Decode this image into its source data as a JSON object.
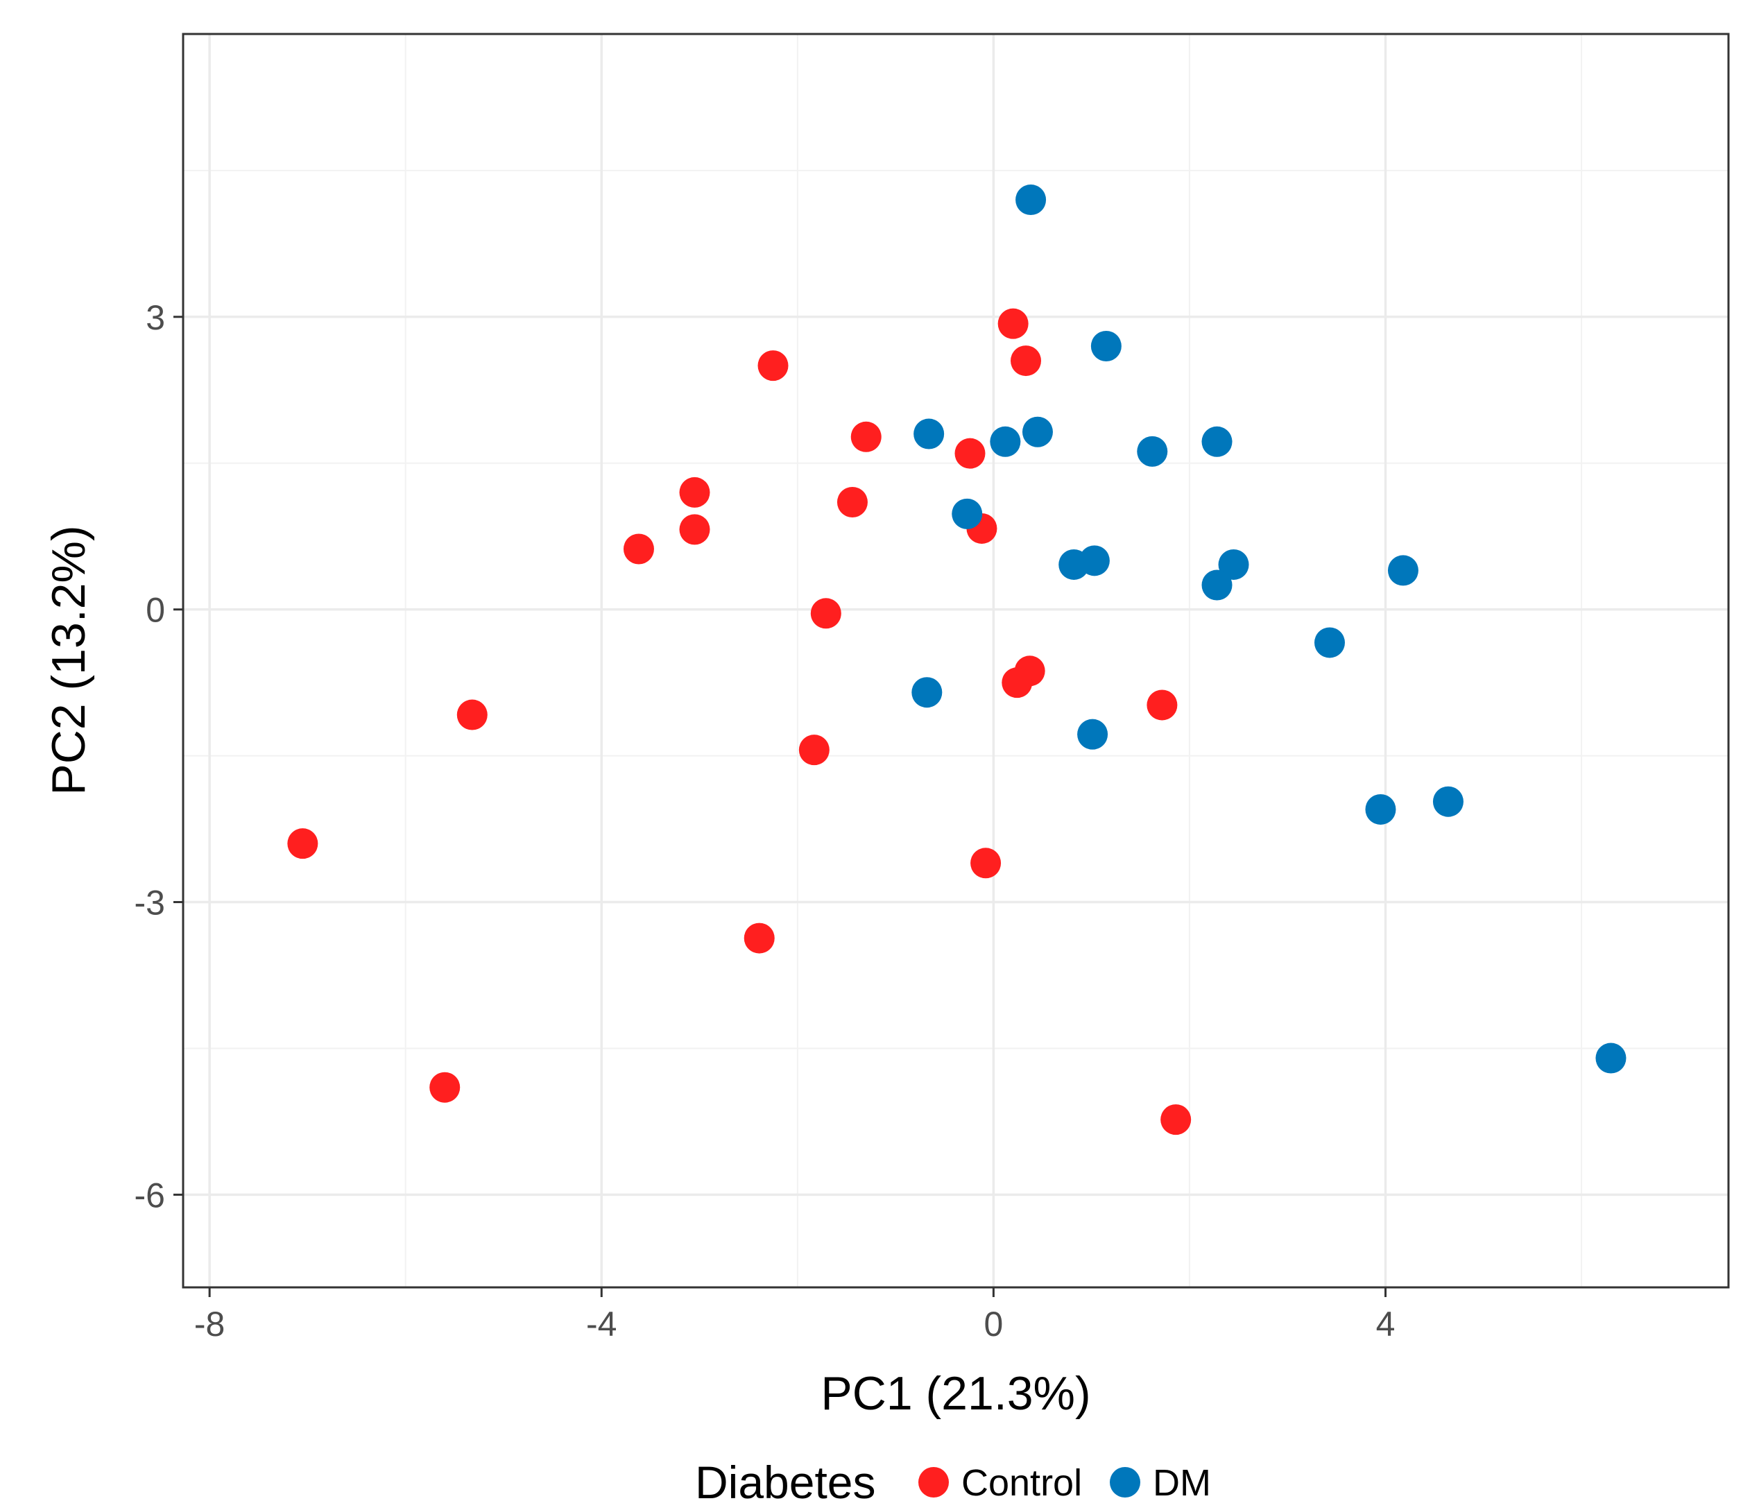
{
  "chart_data": {
    "type": "scatter",
    "title": "",
    "xlabel": "PC1 (21.3%)",
    "ylabel": "PC2 (13.2%)",
    "xlim": [
      -8.27,
      7.5
    ],
    "ylim": [
      -6.95,
      5.9
    ],
    "x_ticks": [
      -8,
      -4,
      0,
      4
    ],
    "x_tick_labels": [
      "-8",
      "-4",
      "0",
      "4"
    ],
    "y_ticks": [
      3,
      0,
      -3,
      -6
    ],
    "y_tick_labels": [
      "3",
      "0",
      "-3",
      "-6"
    ],
    "x_minor": [
      -6,
      -2,
      2,
      6
    ],
    "y_minor": [
      4.5,
      1.5,
      -1.5,
      -4.5
    ],
    "grid": true,
    "legend": {
      "title": "Diabetes",
      "position": "bottom",
      "entries": [
        {
          "name": "Control",
          "color": "#ff1f1f"
        },
        {
          "name": "DM",
          "color": "#0077bb"
        }
      ]
    },
    "series": [
      {
        "name": "Control",
        "color": "#ff1f1f",
        "points": [
          [
            0.2,
            2.93
          ],
          [
            0.33,
            2.55
          ],
          [
            -2.25,
            2.5
          ],
          [
            -1.3,
            1.77
          ],
          [
            -0.24,
            1.6
          ],
          [
            -3.05,
            1.2
          ],
          [
            -1.44,
            1.1
          ],
          [
            -3.05,
            0.82
          ],
          [
            -0.12,
            0.83
          ],
          [
            -3.62,
            0.62
          ],
          [
            -1.71,
            -0.04
          ],
          [
            0.37,
            -0.63
          ],
          [
            0.24,
            -0.75
          ],
          [
            1.72,
            -0.98
          ],
          [
            -5.32,
            -1.08
          ],
          [
            -1.83,
            -1.44
          ],
          [
            -7.05,
            -2.4
          ],
          [
            -0.08,
            -2.6
          ],
          [
            -2.39,
            -3.37
          ],
          [
            -5.6,
            -4.9
          ],
          [
            1.86,
            -5.23
          ]
        ]
      },
      {
        "name": "DM",
        "color": "#0077bb",
        "points": [
          [
            0.38,
            4.2
          ],
          [
            1.15,
            2.7
          ],
          [
            0.45,
            1.82
          ],
          [
            -0.66,
            1.8
          ],
          [
            0.12,
            1.72
          ],
          [
            2.28,
            1.72
          ],
          [
            1.62,
            1.62
          ],
          [
            -0.27,
            0.98
          ],
          [
            1.03,
            0.5
          ],
          [
            0.82,
            0.46
          ],
          [
            2.45,
            0.46
          ],
          [
            4.18,
            0.4
          ],
          [
            2.28,
            0.25
          ],
          [
            3.43,
            -0.34
          ],
          [
            -0.68,
            -0.85
          ],
          [
            1.01,
            -1.28
          ],
          [
            4.64,
            -1.97
          ],
          [
            3.95,
            -2.05
          ],
          [
            6.3,
            -4.6
          ]
        ]
      }
    ]
  }
}
